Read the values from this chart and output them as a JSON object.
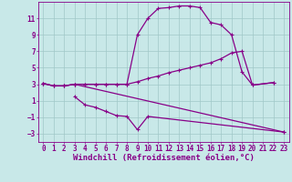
{
  "background_color": "#c8e8e8",
  "grid_color": "#a0c8c8",
  "line_color": "#880088",
  "marker": "+",
  "markersize": 3,
  "linewidth": 0.9,
  "xlim": [
    -0.5,
    23.5
  ],
  "ylim": [
    -4,
    13
  ],
  "yticks": [
    -3,
    -1,
    1,
    3,
    5,
    7,
    9,
    11
  ],
  "xticks": [
    0,
    1,
    2,
    3,
    4,
    5,
    6,
    7,
    8,
    9,
    10,
    11,
    12,
    13,
    14,
    15,
    16,
    17,
    18,
    19,
    20,
    21,
    22,
    23
  ],
  "xlabel": "Windchill (Refroidissement éolien,°C)",
  "xlabel_fontsize": 6.5,
  "tick_fontsize": 5.5,
  "line1_x": [
    0,
    1,
    2,
    3,
    4,
    5,
    6,
    7,
    8,
    9,
    10,
    11,
    12,
    13,
    14,
    15,
    16,
    17,
    18,
    19,
    20,
    22
  ],
  "line1_y": [
    3.1,
    2.8,
    2.8,
    3.0,
    3.0,
    3.0,
    3.0,
    3.0,
    3.0,
    9.0,
    11.0,
    12.2,
    12.3,
    12.5,
    12.5,
    12.3,
    10.5,
    10.2,
    9.0,
    4.5,
    2.9,
    3.2
  ],
  "line2_x": [
    0,
    1,
    2,
    3,
    4,
    5,
    6,
    7,
    8,
    9,
    10,
    11,
    12,
    13,
    14,
    15,
    16,
    17,
    18,
    19,
    20,
    22
  ],
  "line2_y": [
    3.1,
    2.8,
    2.8,
    3.0,
    3.0,
    3.0,
    3.0,
    3.0,
    3.0,
    3.3,
    3.7,
    4.0,
    4.4,
    4.7,
    5.0,
    5.3,
    5.6,
    6.1,
    6.8,
    7.0,
    2.9,
    3.2
  ],
  "line3_x": [
    3,
    4,
    5,
    6,
    7,
    8,
    9,
    10,
    23
  ],
  "line3_y": [
    1.5,
    0.5,
    0.2,
    -0.3,
    -0.8,
    -0.9,
    -2.5,
    -0.9,
    -2.8
  ],
  "line4_x": [
    0,
    1,
    2,
    3,
    23
  ],
  "line4_y": [
    3.1,
    2.8,
    2.8,
    3.0,
    -2.8
  ]
}
